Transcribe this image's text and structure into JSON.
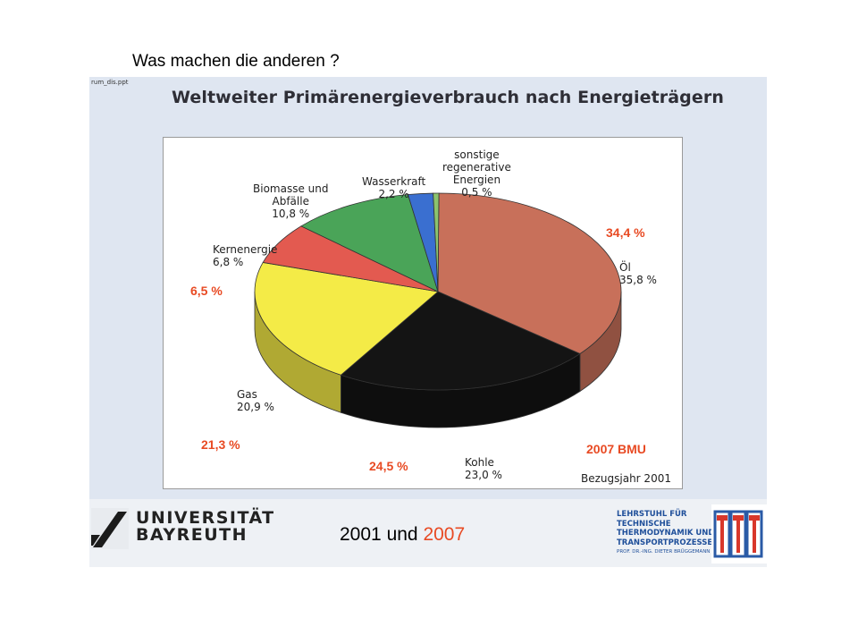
{
  "page_title": "Was machen die anderen ?",
  "scan": {
    "file_tag": "rum_dis.ppt",
    "header": "Weltweiter Primärenergieverbrauch nach Energieträgern"
  },
  "chart_data": {
    "type": "pie",
    "title": "Weltweiter Primärenergieverbrauch nach Energieträgern",
    "reference_year_label": "Bezugsjahr 2001",
    "series_2001": [
      {
        "name": "Öl",
        "label": "Öl",
        "value_label": "35,8 %",
        "value": 35.8,
        "color": "#c8705a"
      },
      {
        "name": "Kohle",
        "label": "Kohle",
        "value_label": "23,0 %",
        "value": 23.0,
        "color": "#141414"
      },
      {
        "name": "Gas",
        "label": "Gas",
        "value_label": "20,9 %",
        "value": 20.9,
        "color": "#f4eb47"
      },
      {
        "name": "Kernenergie",
        "label": "Kernenergie",
        "value_label": "6,8 %",
        "value": 6.8,
        "color": "#e35a50"
      },
      {
        "name": "Biomasse und Abfälle",
        "label_lines": [
          "Biomasse und",
          "Abfälle"
        ],
        "value_label": "10,8 %",
        "value": 10.8,
        "color": "#4aa458"
      },
      {
        "name": "Wasserkraft",
        "label": "Wasserkraft",
        "value_label": "2,2 %",
        "value": 2.2,
        "color": "#3a6fd0"
      },
      {
        "name": "sonstige regenerative Energien",
        "label_lines": [
          "sonstige",
          "regenerative",
          "Energien"
        ],
        "value_label": "0,5 %",
        "value": 0.5,
        "color": "#8bc36e"
      }
    ],
    "overlay_2007": {
      "source_label": "2007  BMU",
      "values": [
        {
          "name": "Öl",
          "value_label": "34,4 %",
          "value": 34.4
        },
        {
          "name": "Kohle",
          "value_label": "24,5 %",
          "value": 24.5
        },
        {
          "name": "Gas",
          "value_label": "21,3 %",
          "value": 21.3
        },
        {
          "name": "Kernenergie",
          "value_label": "6,5 %",
          "value": 6.5
        }
      ],
      "color": "#e84a23"
    }
  },
  "footer": {
    "university_lines": [
      "UNIVERSITÄT",
      "BAYREUTH"
    ],
    "chair_lines": [
      "LEHRSTUHL FÜR",
      "TECHNISCHE",
      "THERMODYNAMIK UND",
      "TRANSPORTPROZESSE"
    ],
    "chair_sub": "PROF. DR.-ING. DIETER BRÜGGEMANN"
  },
  "years_caption": {
    "first": "2001",
    "connector": "und",
    "second": "2007"
  }
}
